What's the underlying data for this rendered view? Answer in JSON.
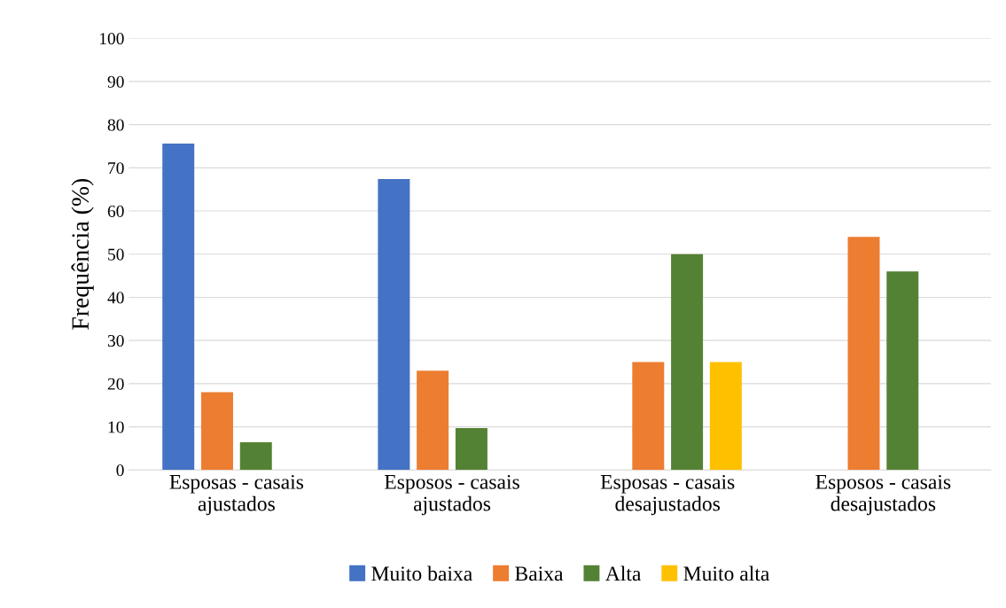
{
  "chart_data": {
    "type": "bar",
    "ylabel": "Frequência (%)",
    "categories": [
      "Esposas - casais\najustados",
      "Esposos - casais\najustados",
      "Esposas - casais\ndesajustados",
      "Esposos - casais\ndesajustados"
    ],
    "series": [
      {
        "name": "Muito baixa",
        "color": "#4472c4",
        "values": [
          75.6,
          67.4,
          null,
          null
        ]
      },
      {
        "name": "Baixa",
        "color": "#ed7d31",
        "values": [
          18,
          23,
          25,
          54
        ]
      },
      {
        "name": "Alta",
        "color": "#548235",
        "values": [
          6.4,
          9.7,
          50,
          46
        ]
      },
      {
        "name": "Muito alta",
        "color": "#ffc000",
        "values": [
          null,
          null,
          25,
          null
        ]
      }
    ],
    "ylim": [
      0,
      100
    ],
    "yticks": [
      0,
      10,
      20,
      30,
      40,
      50,
      60,
      70,
      80,
      90,
      100
    ],
    "grid": "y",
    "legend": "bottom"
  }
}
